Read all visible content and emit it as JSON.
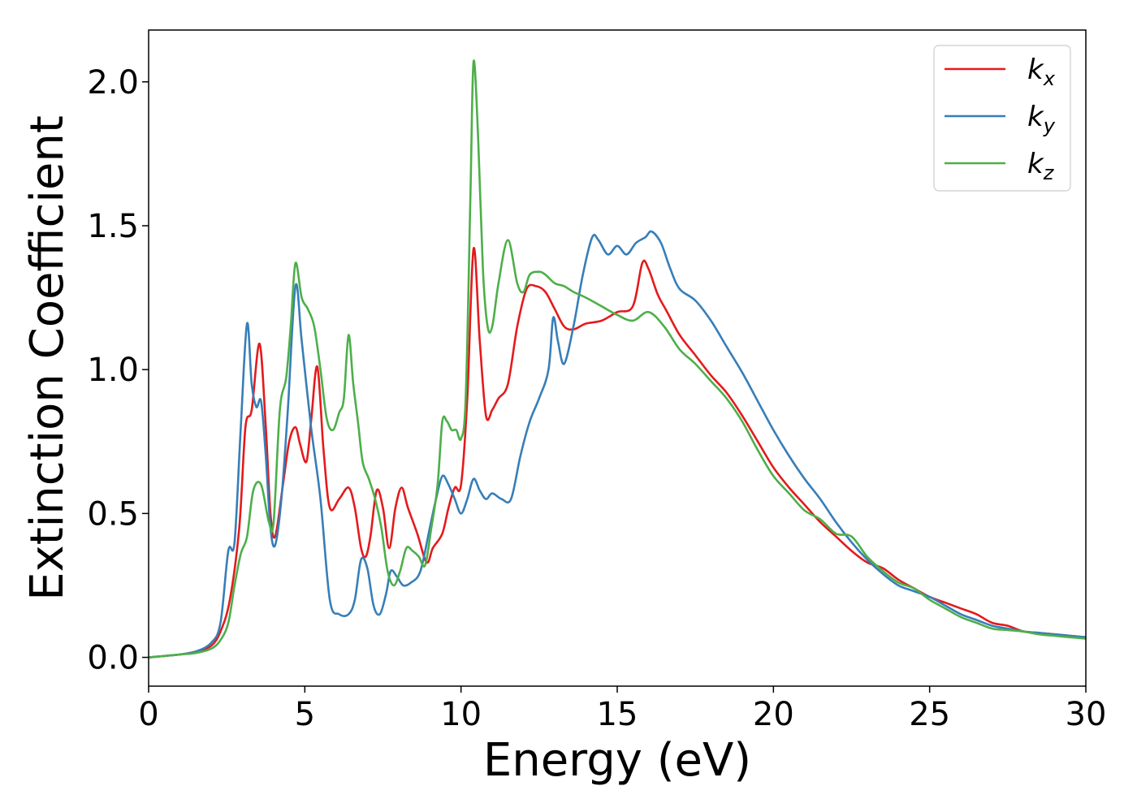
{
  "chart_data": {
    "type": "line",
    "title": "",
    "xlabel": "Energy (eV)",
    "ylabel": "Extinction Coefficient",
    "xlim": [
      0,
      30
    ],
    "ylim": [
      -0.1,
      2.18
    ],
    "xticks": [
      0,
      5,
      10,
      15,
      20,
      25,
      30
    ],
    "xtick_labels": [
      "0",
      "5",
      "10",
      "15",
      "20",
      "25",
      "30"
    ],
    "yticks": [
      0.0,
      0.5,
      1.0,
      1.5,
      2.0
    ],
    "ytick_labels": [
      "0.0",
      "0.5",
      "1.0",
      "1.5",
      "2.0"
    ],
    "grid": false,
    "legend_position": "top-right",
    "series": [
      {
        "name": "k",
        "subscript": "x",
        "color": "#e41a1c",
        "x": [
          0,
          1,
          1.5,
          2,
          2.3,
          2.6,
          2.9,
          3.1,
          3.3,
          3.55,
          3.75,
          3.9,
          4.05,
          4.3,
          4.5,
          4.7,
          4.85,
          5.05,
          5.2,
          5.4,
          5.6,
          5.8,
          6.1,
          6.4,
          6.6,
          6.8,
          6.95,
          7.1,
          7.3,
          7.5,
          7.7,
          7.9,
          8.1,
          8.3,
          8.6,
          8.9,
          9.1,
          9.4,
          9.6,
          9.8,
          10.0,
          10.2,
          10.4,
          10.6,
          10.8,
          11.0,
          11.2,
          11.5,
          11.8,
          12.1,
          12.4,
          12.7,
          13.0,
          13.3,
          13.6,
          14.0,
          14.5,
          15.0,
          15.5,
          15.8,
          16.0,
          16.3,
          16.6,
          17.0,
          17.5,
          18.0,
          18.5,
          19.0,
          19.5,
          20.0,
          20.5,
          21.0,
          21.5,
          22.0,
          22.5,
          23.0,
          23.5,
          24.0,
          24.5,
          25.0,
          25.5,
          26.0,
          26.5,
          27.0,
          27.5,
          28.0,
          28.5,
          29.0,
          29.5,
          30.0
        ],
        "y": [
          0.0,
          0.01,
          0.02,
          0.04,
          0.09,
          0.2,
          0.45,
          0.8,
          0.86,
          1.09,
          0.8,
          0.5,
          0.42,
          0.6,
          0.75,
          0.8,
          0.74,
          0.68,
          0.82,
          1.01,
          0.72,
          0.52,
          0.55,
          0.59,
          0.52,
          0.38,
          0.35,
          0.42,
          0.58,
          0.52,
          0.38,
          0.52,
          0.59,
          0.52,
          0.43,
          0.33,
          0.38,
          0.43,
          0.52,
          0.59,
          0.6,
          0.9,
          1.42,
          1.1,
          0.84,
          0.86,
          0.9,
          0.95,
          1.15,
          1.28,
          1.29,
          1.27,
          1.21,
          1.15,
          1.14,
          1.16,
          1.17,
          1.2,
          1.22,
          1.37,
          1.35,
          1.26,
          1.2,
          1.12,
          1.05,
          0.98,
          0.92,
          0.84,
          0.75,
          0.66,
          0.59,
          0.53,
          0.47,
          0.42,
          0.37,
          0.33,
          0.31,
          0.27,
          0.24,
          0.21,
          0.19,
          0.17,
          0.15,
          0.12,
          0.11,
          0.09,
          0.085,
          0.08,
          0.075,
          0.07
        ]
      },
      {
        "name": "k",
        "subscript": "y",
        "color": "#377eb8",
        "x": [
          0,
          1,
          1.5,
          2,
          2.3,
          2.55,
          2.75,
          2.95,
          3.15,
          3.3,
          3.45,
          3.6,
          3.75,
          3.9,
          4.05,
          4.25,
          4.45,
          4.7,
          4.9,
          5.2,
          5.5,
          5.8,
          6.1,
          6.4,
          6.6,
          6.8,
          7.0,
          7.2,
          7.4,
          7.6,
          7.75,
          7.95,
          8.15,
          8.4,
          8.7,
          9.0,
          9.2,
          9.4,
          9.6,
          9.8,
          10.0,
          10.2,
          10.4,
          10.6,
          10.8,
          11.0,
          11.3,
          11.6,
          11.9,
          12.2,
          12.5,
          12.8,
          12.95,
          13.1,
          13.3,
          13.6,
          13.9,
          14.2,
          14.4,
          14.7,
          15.0,
          15.3,
          15.6,
          15.9,
          16.1,
          16.4,
          16.7,
          17.0,
          17.5,
          18.0,
          18.5,
          19.0,
          19.5,
          20.0,
          20.5,
          21.0,
          21.5,
          22.0,
          22.5,
          23.0,
          23.5,
          24.0,
          24.5,
          25.0,
          25.5,
          26.0,
          26.5,
          27.0,
          27.5,
          28.0,
          28.5,
          29.0,
          29.5,
          30.0
        ],
        "y": [
          0.0,
          0.01,
          0.02,
          0.05,
          0.12,
          0.37,
          0.4,
          0.8,
          1.16,
          0.95,
          0.87,
          0.89,
          0.7,
          0.45,
          0.39,
          0.55,
          0.85,
          1.29,
          1.1,
          0.8,
          0.55,
          0.2,
          0.15,
          0.15,
          0.2,
          0.34,
          0.31,
          0.18,
          0.15,
          0.22,
          0.3,
          0.28,
          0.25,
          0.26,
          0.3,
          0.45,
          0.55,
          0.63,
          0.6,
          0.55,
          0.5,
          0.55,
          0.62,
          0.58,
          0.55,
          0.57,
          0.55,
          0.55,
          0.7,
          0.82,
          0.9,
          1.0,
          1.18,
          1.1,
          1.02,
          1.15,
          1.33,
          1.46,
          1.45,
          1.4,
          1.43,
          1.4,
          1.44,
          1.46,
          1.48,
          1.44,
          1.35,
          1.28,
          1.24,
          1.17,
          1.08,
          0.99,
          0.89,
          0.79,
          0.7,
          0.62,
          0.55,
          0.47,
          0.4,
          0.34,
          0.29,
          0.25,
          0.23,
          0.21,
          0.18,
          0.15,
          0.13,
          0.11,
          0.1,
          0.09,
          0.085,
          0.08,
          0.075,
          0.07
        ]
      },
      {
        "name": "k",
        "subscript": "z",
        "color": "#4daf4a",
        "x": [
          0,
          1,
          1.5,
          2,
          2.3,
          2.55,
          2.75,
          2.95,
          3.15,
          3.35,
          3.6,
          3.85,
          4.0,
          4.2,
          4.4,
          4.55,
          4.7,
          4.9,
          5.1,
          5.3,
          5.5,
          5.7,
          5.9,
          6.1,
          6.25,
          6.4,
          6.55,
          6.7,
          6.85,
          7.05,
          7.25,
          7.45,
          7.65,
          7.85,
          8.05,
          8.25,
          8.45,
          8.65,
          8.85,
          9.05,
          9.25,
          9.4,
          9.55,
          9.7,
          9.85,
          10.0,
          10.15,
          10.3,
          10.4,
          10.55,
          10.7,
          10.85,
          11.0,
          11.2,
          11.5,
          11.8,
          12.0,
          12.2,
          12.5,
          12.7,
          13.0,
          13.3,
          13.6,
          14.0,
          14.5,
          15.0,
          15.5,
          16.0,
          16.5,
          17.0,
          17.5,
          18.0,
          18.5,
          19.0,
          19.5,
          20.0,
          20.5,
          21.0,
          21.5,
          22.0,
          22.5,
          23.0,
          23.5,
          24.0,
          24.5,
          25.0,
          25.5,
          26.0,
          26.5,
          27.0,
          27.5,
          28.0,
          28.5,
          29.0,
          29.5,
          30.0
        ],
        "y": [
          0.0,
          0.01,
          0.015,
          0.03,
          0.06,
          0.12,
          0.25,
          0.36,
          0.42,
          0.58,
          0.6,
          0.47,
          0.47,
          0.86,
          0.97,
          1.15,
          1.37,
          1.25,
          1.21,
          1.15,
          1.0,
          0.83,
          0.79,
          0.85,
          0.9,
          1.12,
          0.95,
          0.82,
          0.68,
          0.62,
          0.55,
          0.45,
          0.3,
          0.25,
          0.3,
          0.38,
          0.37,
          0.35,
          0.32,
          0.45,
          0.6,
          0.82,
          0.82,
          0.79,
          0.79,
          0.76,
          0.9,
          1.6,
          2.07,
          1.8,
          1.35,
          1.15,
          1.15,
          1.3,
          1.45,
          1.3,
          1.27,
          1.33,
          1.34,
          1.33,
          1.3,
          1.29,
          1.27,
          1.25,
          1.22,
          1.19,
          1.17,
          1.2,
          1.15,
          1.07,
          1.02,
          0.96,
          0.9,
          0.82,
          0.72,
          0.63,
          0.57,
          0.51,
          0.48,
          0.43,
          0.42,
          0.35,
          0.3,
          0.26,
          0.24,
          0.2,
          0.17,
          0.14,
          0.12,
          0.1,
          0.095,
          0.09,
          0.08,
          0.075,
          0.07,
          0.065
        ]
      }
    ]
  }
}
